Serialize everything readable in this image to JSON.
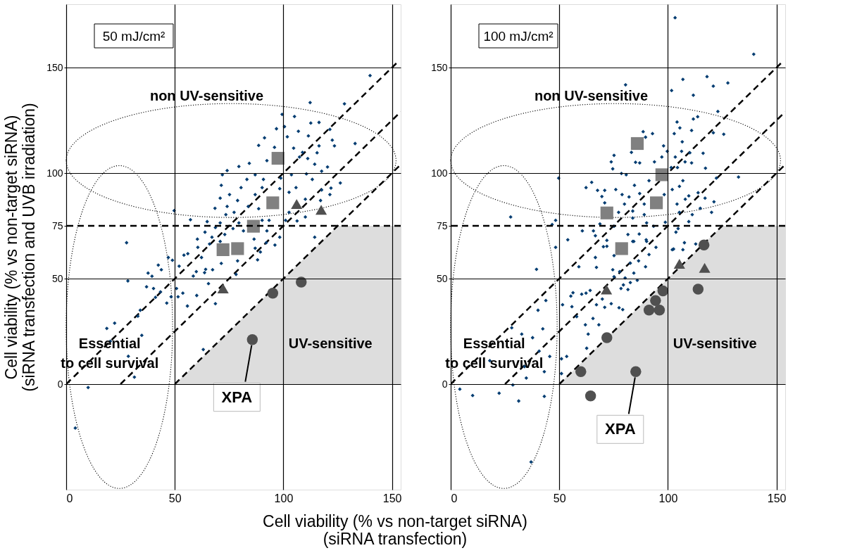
{
  "chart_data": [
    {
      "type": "scatter",
      "title": "50 mJ/cm²",
      "xlabel": "Cell viability (% vs non-target siRNA)\n(siRNA transfection)",
      "ylabel": "Cell viability (% vs non-target siRNA)\n(siRNA transfection and UVB irradiation)",
      "xlim": [
        0,
        154
      ],
      "ylim": [
        -50,
        180
      ],
      "xticks": [
        0,
        50,
        100,
        150
      ],
      "yticks": [
        0,
        50,
        75,
        100,
        150
      ],
      "grid": true,
      "ref_lines": [
        {
          "axis": "y",
          "value": 75,
          "line_style": "dashed",
          "color": "#000000"
        }
      ],
      "annotations": [
        "non UV-sensitive",
        "Essential\nto cell survival",
        "UV-sensitive",
        {
          "text": "XPA",
          "x": 85.7,
          "y": 21.1
        }
      ],
      "series": [
        {
          "type": "area",
          "color": "#dddddd",
          "x": [
            50,
            125,
            154
          ],
          "values": [
            0,
            75,
            75
          ]
        },
        {
          "type": "line",
          "line_style": "dashed",
          "color": "#000000",
          "x": [
            0,
            152
          ],
          "values": [
            0,
            152
          ]
        },
        {
          "type": "line",
          "line_style": "dashed",
          "color": "#000000",
          "x": [
            25,
            154
          ],
          "values": [
            0,
            129
          ]
        },
        {
          "type": "line",
          "line_style": "dashed",
          "color": "#000000",
          "x": [
            50,
            154
          ],
          "values": [
            0,
            104
          ]
        },
        {
          "marker": "diamond",
          "color": "#003c71",
          "x": [
            139.9,
            112.3,
            128.1,
            99.4,
            105.1,
            112.6,
            116.4,
            121.4,
            96.8,
            100.5,
            106.9,
            111.5,
            101.8,
            91.3,
            122.5,
            133,
            88.6,
            95.9,
            116.4,
            123.5,
            104.7,
            108.8,
            115.5,
            107.4,
            111.2,
            92.4,
            84.3,
            114.4,
            79.5,
            74.1,
            120.3,
            117.6,
            71.9,
            87,
            110.6,
            103.7,
            83.2,
            90.8,
            98.8,
            113.3,
            126.2,
            121.9,
            105.8,
            71.4,
            80.5,
            90.2,
            98.3,
            117.6,
            121.4,
            87,
            75.2,
            102.6,
            70.9,
            78.9,
            110.1,
            117.1,
            83.8,
            74.1,
            68.5,
            88.6,
            49.7,
            77.3,
            102.6,
            73.5,
            110.1,
            93.4,
            57.2,
            101,
            106.3,
            64.9,
            70.9,
            79.5,
            90.2,
            76.8,
            68.7,
            63.9,
            73,
            81.6,
            92.4,
            98.3,
            114.4,
            86.5,
            60.4,
            67.1,
            70.9,
            27.8,
            96.1,
            87,
            60.6,
            47,
            54.2,
            56,
            62.3,
            66,
            89.4,
            92.1,
            48.9,
            42.4,
            43.8,
            52,
            59.9,
            64.2,
            67.4,
            71.4,
            78.9,
            88.1,
            58.5,
            63.7,
            78.2,
            37.7,
            39.5,
            28.4,
            37,
            40.2,
            43.4,
            50.8,
            53.7,
            60.1,
            65.5,
            48.3,
            51.5,
            41.1,
            46.3,
            55.8,
            68.7,
            34.1,
            33,
            22.3,
            18.7,
            34.8,
            20.3,
            28.6,
            63.1,
            31.4,
            10.1,
            4.2
          ],
          "values": [
            146.2,
            133.4,
            132.8,
            127.8,
            126.8,
            123.7,
            124,
            120.7,
            121,
            122,
            119.8,
            117.6,
            117.2,
            116.7,
            115.6,
            114,
            113.1,
            112.2,
            112.9,
            112.9,
            111.8,
            109.8,
            109.6,
            107.6,
            106.9,
            105.9,
            104.6,
            104.2,
            103.1,
            101.2,
            102.9,
            100.9,
            99.2,
            99.2,
            99.6,
            99.2,
            97,
            97,
            97.6,
            97,
            95.3,
            92.9,
            93.1,
            94.2,
            93.1,
            93.1,
            92.6,
            92,
            89.8,
            89.8,
            89.8,
            90.9,
            88.1,
            87,
            87.6,
            87,
            84.2,
            84.2,
            83.3,
            83.1,
            82.2,
            81.4,
            81.4,
            80.3,
            79.2,
            77.6,
            77.9,
            77.6,
            77.3,
            77,
            76.4,
            76.4,
            77.6,
            73.7,
            74.2,
            72,
            70.9,
            72.6,
            72.6,
            69.6,
            69.6,
            68.7,
            68.7,
            69.6,
            67.6,
            67,
            65.9,
            64.4,
            64.8,
            60,
            61.1,
            61.8,
            60,
            66.4,
            62.6,
            67,
            58.7,
            56.4,
            54.2,
            55.9,
            53.3,
            54.4,
            54.2,
            57.2,
            58.4,
            58.9,
            51.2,
            52.8,
            52,
            52.6,
            51.1,
            48.9,
            46.1,
            45.3,
            43.7,
            45.3,
            43.1,
            42,
            47.6,
            41.4,
            41.4,
            41.1,
            38.4,
            37,
            38.1,
            35,
            32.2,
            28.9,
            26.4,
            23.1,
            20.3,
            13.2,
            16.4,
            3.3,
            -1.6,
            -20.8
          ]
        },
        {
          "marker": "square",
          "color": "#808080",
          "x": [
            97.5,
            95.1,
            86.2,
            72.2,
            78.9
          ],
          "values": [
            107,
            85.9,
            74.8,
            63.7,
            64.2
          ]
        },
        {
          "marker": "triangle",
          "color": "#505050",
          "x": [
            106.1,
            117.4,
            72.2
          ],
          "values": [
            85.3,
            82.6,
            45.3
          ]
        },
        {
          "marker": "circle",
          "color": "#505050",
          "x": [
            95.1,
            108.2,
            85.7
          ],
          "values": [
            43.1,
            48.3,
            21.1
          ]
        }
      ]
    },
    {
      "type": "scatter",
      "title": "100 mJ/cm²",
      "xlim": [
        0,
        154
      ],
      "ylim": [
        -50,
        180
      ],
      "xticks": [
        0,
        50,
        100,
        150
      ],
      "yticks": [
        0,
        50,
        75,
        100,
        150
      ],
      "grid": true,
      "ref_lines": [
        {
          "axis": "y",
          "value": 75,
          "line_style": "dashed",
          "color": "#000000"
        }
      ],
      "annotations": [
        "non UV-sensitive",
        "Essential\nto cell survival",
        "UV-sensitive",
        {
          "text": "XPA",
          "x": 85.2,
          "y": 5.9
        }
      ],
      "series": [
        {
          "type": "area",
          "color": "#dddddd",
          "x": [
            50,
            125,
            154
          ],
          "values": [
            0,
            75,
            75
          ]
        },
        {
          "type": "line",
          "line_style": "dashed",
          "color": "#000000",
          "x": [
            0,
            152
          ],
          "values": [
            0,
            152
          ]
        },
        {
          "type": "line",
          "line_style": "dashed",
          "color": "#000000",
          "x": [
            25,
            154
          ],
          "values": [
            0,
            129
          ]
        },
        {
          "type": "line",
          "line_style": "dashed",
          "color": "#000000",
          "x": [
            50,
            154
          ],
          "values": [
            0,
            104
          ]
        },
        {
          "marker": "diamond",
          "color": "#003c71",
          "x": [
            103.3,
            139.5,
            106.9,
            118,
            120.9,
            127.6,
            80.5,
            101.7,
            111.7,
            123,
            113.7,
            104.2,
            111.7,
            105.5,
            110.9,
            120.9,
            125.7,
            88.6,
            92.9,
            102.9,
            106.6,
            89.7,
            98,
            99.7,
            106.3,
            110.1,
            116.2,
            83.2,
            75.2,
            97.2,
            103.4,
            107.9,
            110.9,
            93.8,
            85.1,
            87,
            73.9,
            74.6,
            101.5,
            104.4,
            117.3,
            78.6,
            80.8,
            49.7,
            122.3,
            132.5,
            62.3,
            64.9,
            67.6,
            70.9,
            76,
            84.6,
            91.3,
            106.9,
            105.3,
            102,
            113.9,
            109.6,
            69.6,
            78.9,
            82.1,
            87,
            98.3,
            117.1,
            121.2,
            108,
            70.9,
            80,
            89.1,
            104.2,
            114.9,
            120.1,
            77.3,
            83.8,
            89.1,
            105.3,
            27.6,
            111.2,
            48.3,
            46.7,
            68.7,
            75.2,
            83.8,
            90.2,
            98.8,
            109.6,
            104.7,
            60.6,
            65.7,
            81.6,
            86.8,
            93.4,
            103.7,
            53.9,
            66.6,
            71.9,
            84.3,
            90,
            107.6,
            48.3,
            70.3,
            94.5,
            102.6,
            71.9,
            83.8,
            90.2,
            102,
            106.9,
            112.8,
            66.6,
            75.2,
            91.3,
            86.5,
            89.7,
            59,
            67.1,
            74.6,
            77.8,
            82.7,
            39.5,
            84.3,
            75.2,
            80.3,
            82.7,
            85.9,
            79.5,
            78.4,
            81.6,
            56.3,
            55.3,
            60.3,
            62.3,
            64.2,
            69.8,
            51.5,
            55.8,
            70.9,
            67.1,
            73.9,
            77.5,
            79.2,
            40.2,
            43.8,
            58,
            65.5,
            62,
            68.2,
            28.1,
            32.7,
            37.7,
            42.4,
            63.3,
            40.7,
            45.6,
            62.6,
            53.4,
            51,
            18,
            34,
            43.1,
            51,
            34.8,
            28.6,
            4.2,
            10.1,
            22.3,
            31.3,
            43.1,
            37
          ],
          "values": [
            173.6,
            156.3,
            144.4,
            145.7,
            141.2,
            142.7,
            141.8,
            139.1,
            136.9,
            129.2,
            126.7,
            124.2,
            125.6,
            121.4,
            120.2,
            119.1,
            118.4,
            119.6,
            118.7,
            118.7,
            114.8,
            117,
            112.9,
            110.3,
            110.3,
            109.6,
            109.4,
            109.8,
            108.4,
            107.6,
            107.6,
            105.3,
            104.8,
            105.3,
            105.1,
            104.8,
            105.3,
            102,
            102.6,
            102.6,
            102.3,
            99.8,
            99.2,
            97.6,
            97.6,
            98.1,
            93.1,
            95.6,
            91.8,
            91.8,
            92.2,
            94.2,
            96.4,
            96.4,
            93.7,
            92.2,
            90.7,
            89.2,
            88.9,
            89.8,
            88.7,
            90.3,
            89.8,
            88.1,
            86.4,
            87.6,
            85.9,
            85.3,
            85.3,
            85.3,
            83.3,
            81.4,
            81.4,
            82,
            80.3,
            81.4,
            79.2,
            80.3,
            77.6,
            75.6,
            75.9,
            74.8,
            78.7,
            76.4,
            76.7,
            77,
            73.7,
            72.6,
            72.6,
            70.9,
            71.1,
            74.8,
            72,
            68.4,
            70.3,
            68.1,
            67.6,
            68.4,
            67,
            64.8,
            65.1,
            64.8,
            64,
            65.3,
            67.6,
            67.6,
            63.7,
            63.7,
            66.4,
            60,
            60.9,
            61.4,
            58.4,
            55.6,
            55.6,
            55.3,
            54.2,
            53.3,
            57.3,
            54.4,
            52.6,
            50.9,
            50.3,
            48.1,
            49.2,
            47,
            45.3,
            44.8,
            43.3,
            41.7,
            42.6,
            43.1,
            44.4,
            40.3,
            37.6,
            36.7,
            36.4,
            37.6,
            38.1,
            36.2,
            35.3,
            35,
            39.6,
            32,
            31.1,
            28.1,
            28.1,
            26.7,
            23.7,
            22,
            26.2,
            23.7,
            15.6,
            13.1,
            17,
            13.1,
            12,
            11.1,
            8.3,
            5.9,
            5,
            2.9,
            -0.4,
            -2.4,
            -5.4,
            -4.3,
            -8,
            -5.8,
            -36.9
          ]
        },
        {
          "marker": "square",
          "color": "#808080",
          "x": [
            85.9,
            97.2,
            94.7,
            71.9,
            78.7
          ],
          "values": [
            114,
            99.2,
            85.9,
            81.1,
            64.2
          ]
        },
        {
          "marker": "triangle",
          "color": "#505050",
          "x": [
            71.7,
            105.3,
            116.9
          ],
          "values": [
            44.8,
            57,
            55.1
          ]
        },
        {
          "marker": "circle",
          "color": "#505050",
          "x": [
            116.6,
            97.7,
            113.9,
            94.3,
            91.3,
            96.1,
            71.9,
            59.9,
            85.2,
            64.4
          ],
          "values": [
            65.9,
            44.2,
            45,
            39.6,
            35.1,
            35.1,
            22,
            5.9,
            5.9,
            -5.6
          ]
        }
      ]
    }
  ]
}
